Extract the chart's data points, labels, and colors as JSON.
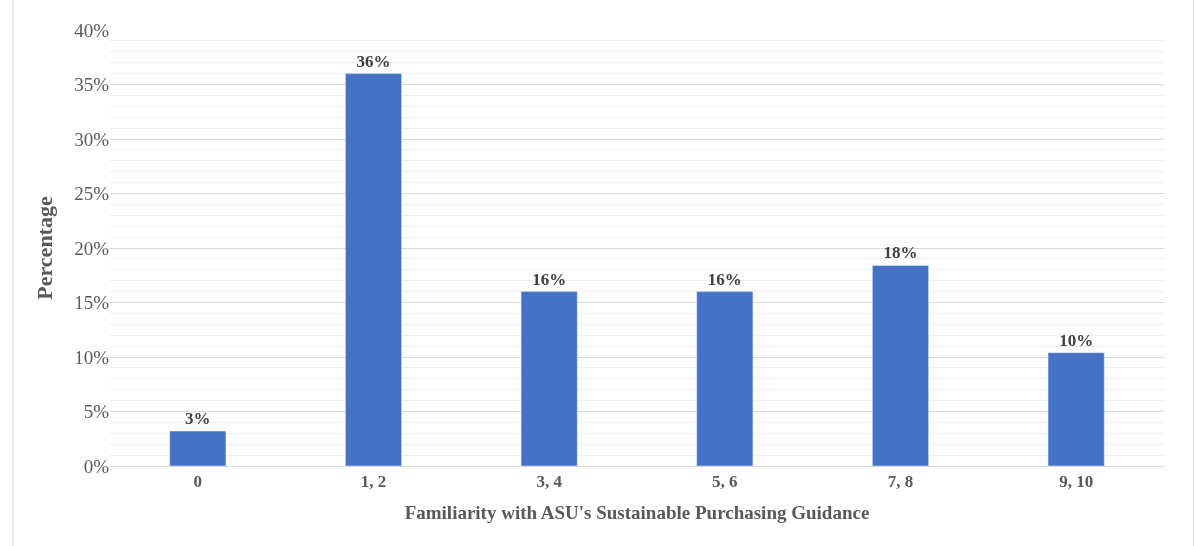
{
  "chart_data": {
    "type": "bar",
    "xlabel": "Familiarity with ASU's Sustainable Purchasing Guidance",
    "ylabel": "Percentage",
    "categories": [
      "0",
      "1, 2",
      "3, 4",
      "5, 6",
      "7, 8",
      "9, 10"
    ],
    "values": [
      3.2,
      36,
      16,
      16,
      18.4,
      10.4
    ],
    "value_labels": [
      "3%",
      "36%",
      "16%",
      "16%",
      "18%",
      "10%"
    ],
    "color": "#4472c4",
    "ylim": [
      0,
      40
    ],
    "yticks": [
      {
        "value": 0,
        "label": "0%"
      },
      {
        "value": 5,
        "label": "5%"
      },
      {
        "value": 10,
        "label": "10%"
      },
      {
        "value": 15,
        "label": "15%"
      },
      {
        "value": 20,
        "label": "20%"
      },
      {
        "value": 25,
        "label": "25%"
      },
      {
        "value": 30,
        "label": "30%"
      },
      {
        "value": 35,
        "label": "35%"
      },
      {
        "value": 40,
        "label": "40%"
      }
    ],
    "grid": "y"
  }
}
